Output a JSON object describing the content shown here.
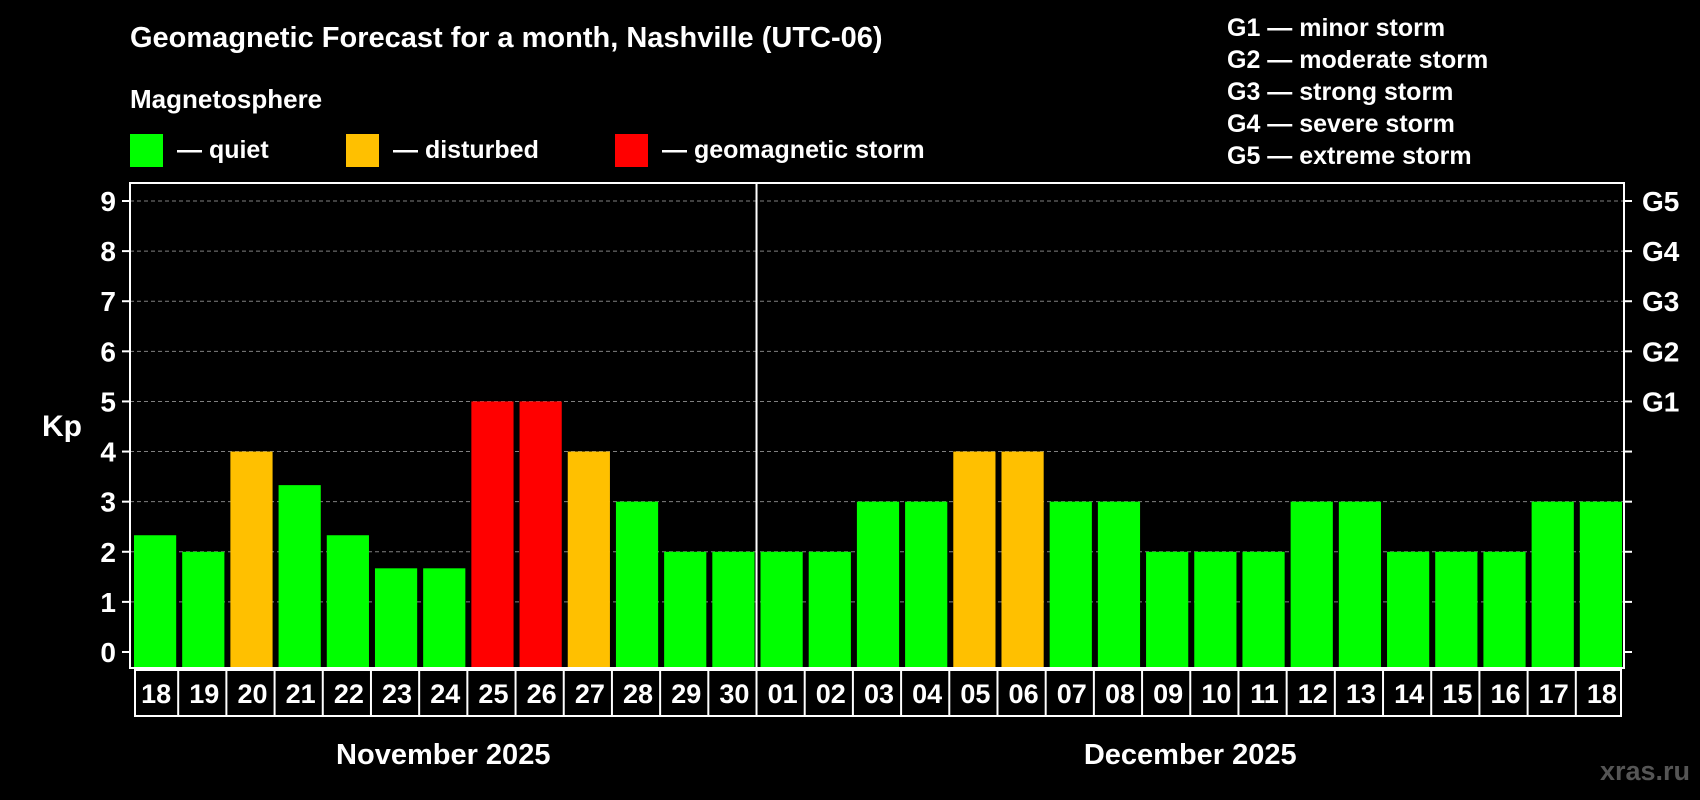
{
  "title": "Geomagnetic Forecast for a month, Nashville (UTC-06)",
  "subtitle": "Magnetosphere",
  "legend": [
    {
      "label": "— quiet",
      "color": "#00ff00"
    },
    {
      "label": "— disturbed",
      "color": "#ffc000"
    },
    {
      "label": "— geomagnetic storm",
      "color": "#ff0000"
    }
  ],
  "storm_scale": [
    "G1 — minor storm",
    "G2 — moderate storm",
    "G3 — strong storm",
    "G4 — severe storm",
    "G5 — extreme storm"
  ],
  "watermark": "xras.ru",
  "colors": {
    "quiet": "#00ff00",
    "disturbed": "#ffc000",
    "storm": "#ff0000",
    "grid": "#808080",
    "axis": "#ffffff"
  },
  "chart_data": {
    "type": "bar",
    "title": "Geomagnetic Forecast for a month, Nashville (UTC-06)",
    "ylabel": "Kp",
    "ylim": [
      0,
      9
    ],
    "yticks": [
      0,
      1,
      2,
      3,
      4,
      5,
      6,
      7,
      8,
      9
    ],
    "right_ticks": [
      {
        "kp": 5,
        "label": "G1"
      },
      {
        "kp": 6,
        "label": "G2"
      },
      {
        "kp": 7,
        "label": "G3"
      },
      {
        "kp": 8,
        "label": "G4"
      },
      {
        "kp": 9,
        "label": "G5"
      }
    ],
    "categories": [
      "18",
      "19",
      "20",
      "21",
      "22",
      "23",
      "24",
      "25",
      "26",
      "27",
      "28",
      "29",
      "30",
      "01",
      "02",
      "03",
      "04",
      "05",
      "06",
      "07",
      "08",
      "09",
      "10",
      "11",
      "12",
      "13",
      "14",
      "15",
      "16",
      "17",
      "18"
    ],
    "values": [
      2.33,
      2,
      4,
      3.33,
      2.33,
      1.67,
      1.67,
      5,
      5,
      4,
      3,
      2,
      2,
      2,
      2,
      3,
      3,
      4,
      4,
      3,
      3,
      2,
      2,
      2,
      3,
      3,
      2,
      2,
      2,
      3,
      3
    ],
    "status": [
      "quiet",
      "quiet",
      "disturbed",
      "quiet",
      "quiet",
      "quiet",
      "quiet",
      "storm",
      "storm",
      "disturbed",
      "quiet",
      "quiet",
      "quiet",
      "quiet",
      "quiet",
      "quiet",
      "quiet",
      "disturbed",
      "disturbed",
      "quiet",
      "quiet",
      "quiet",
      "quiet",
      "quiet",
      "quiet",
      "quiet",
      "quiet",
      "quiet",
      "quiet",
      "quiet",
      "quiet"
    ],
    "months": [
      {
        "label": "November 2025",
        "first_index": 0,
        "last_index": 12
      },
      {
        "label": "December 2025",
        "first_index": 13,
        "last_index": 30
      }
    ]
  }
}
